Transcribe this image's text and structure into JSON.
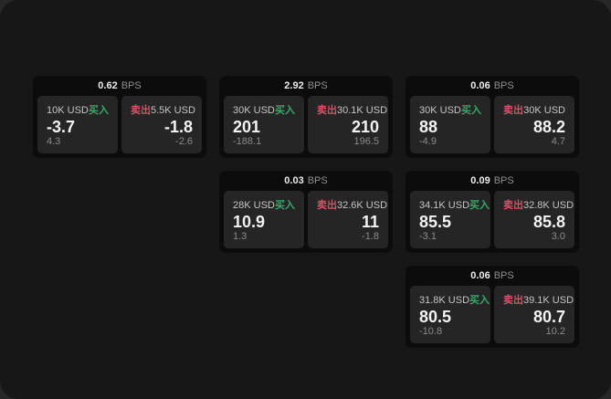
{
  "colors": {
    "canvas": "#272727",
    "window": "#171717",
    "card_bg": "#0c0c0c",
    "tile_bg": "#252525",
    "buy_accent": "#38a869",
    "sell_accent": "#d94f66",
    "value_text": "#f2f2f2",
    "label_text": "#c4c4c4",
    "muted_text": "#8a8a8a"
  },
  "cards": [
    {
      "row": 1,
      "col": 1,
      "bps": "0.62",
      "unit": "BPS",
      "buy": {
        "amount": "10K USD",
        "side": "买入",
        "value": "-3.7",
        "delta": "4.3"
      },
      "sell": {
        "side": "卖出",
        "amount": "5.5K USD",
        "value": "-1.8",
        "delta": "-2.6"
      }
    },
    {
      "row": 1,
      "col": 2,
      "bps": "2.92",
      "unit": "BPS",
      "buy": {
        "amount": "30K USD",
        "side": "买入",
        "value": "201",
        "delta": "-188.1"
      },
      "sell": {
        "side": "卖出",
        "amount": "30.1K USD",
        "value": "210",
        "delta": "196.5"
      }
    },
    {
      "row": 1,
      "col": 3,
      "bps": "0.06",
      "unit": "BPS",
      "buy": {
        "amount": "30K USD",
        "side": "买入",
        "value": "88",
        "delta": "-4.9"
      },
      "sell": {
        "side": "卖出",
        "amount": "30K USD",
        "value": "88.2",
        "delta": "4.7"
      }
    },
    {
      "row": 2,
      "col": 2,
      "bps": "0.03",
      "unit": "BPS",
      "buy": {
        "amount": "28K USD",
        "side": "买入",
        "value": "10.9",
        "delta": "1.3"
      },
      "sell": {
        "side": "卖出",
        "amount": "32.6K USD",
        "value": "11",
        "delta": "-1.8"
      }
    },
    {
      "row": 2,
      "col": 3,
      "bps": "0.09",
      "unit": "BPS",
      "buy": {
        "amount": "34.1K USD",
        "side": "买入",
        "value": "85.5",
        "delta": "-3.1"
      },
      "sell": {
        "side": "卖出",
        "amount": "32.8K USD",
        "value": "85.8",
        "delta": "3.0"
      }
    },
    {
      "row": 3,
      "col": 3,
      "bps": "0.06",
      "unit": "BPS",
      "buy": {
        "amount": "31.8K USD",
        "side": "买入",
        "value": "80.5",
        "delta": "-10.8"
      },
      "sell": {
        "side": "卖出",
        "amount": "39.1K USD",
        "value": "80.7",
        "delta": "10.2"
      }
    }
  ]
}
